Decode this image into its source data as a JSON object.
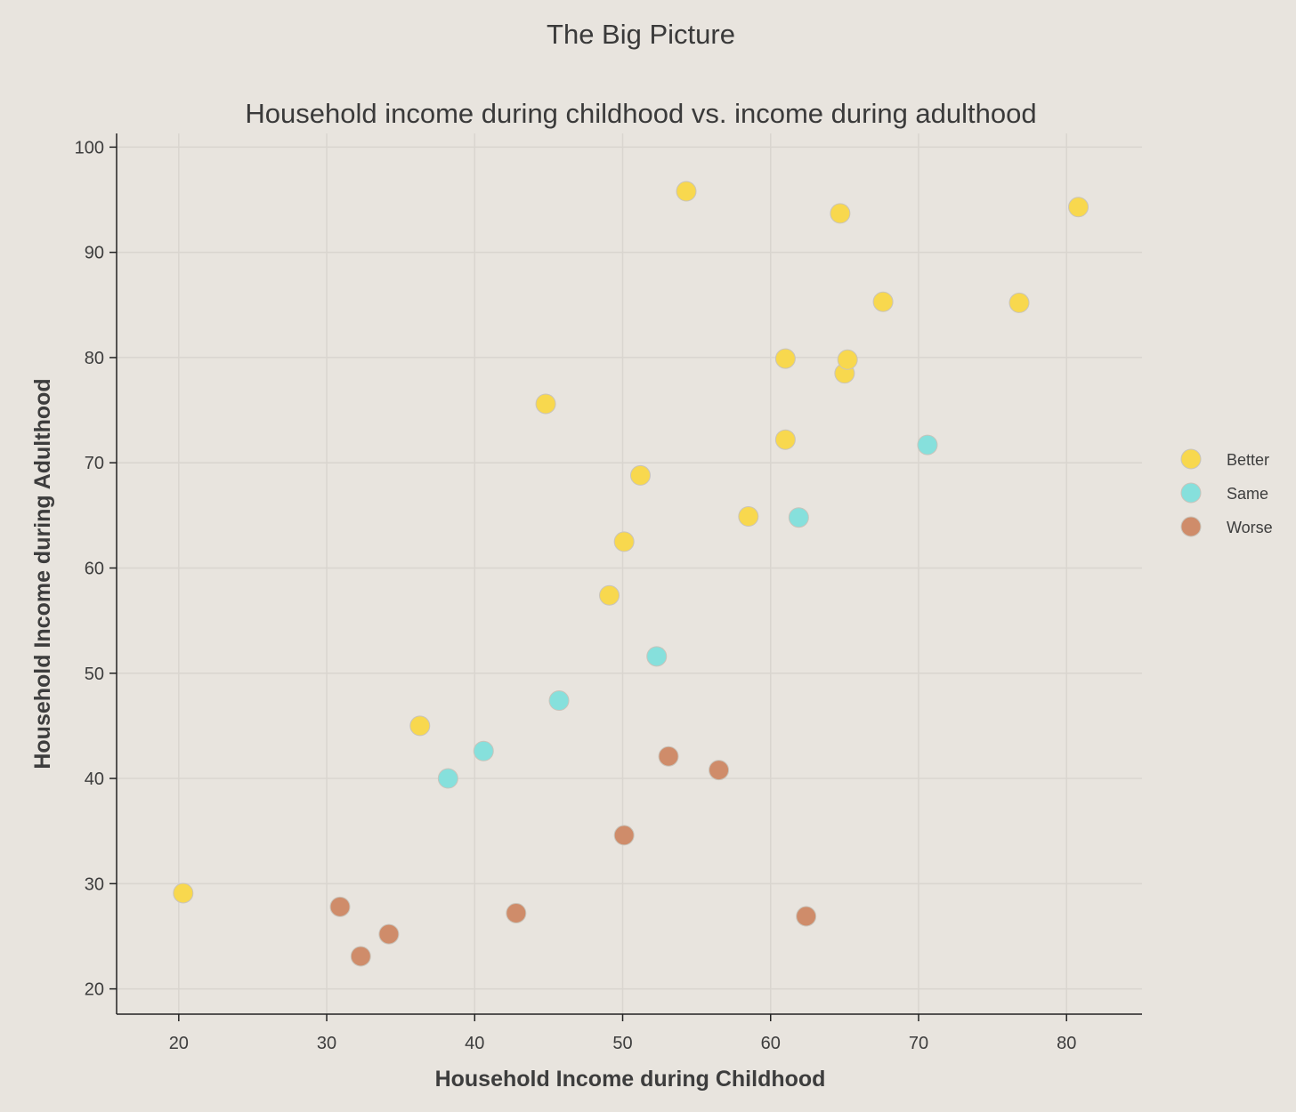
{
  "chart_data": {
    "type": "scatter",
    "title": "The Big Picture",
    "subtitle": "Household income during childhood vs. income during adulthood",
    "xlabel": "Household Income during Childhood",
    "ylabel": "Household Income during Adulthood",
    "xlim": [
      15.8,
      85.1
    ],
    "ylim": [
      17.6,
      101.3
    ],
    "xticks": [
      20,
      30,
      40,
      50,
      60,
      70,
      80
    ],
    "yticks": [
      20,
      30,
      40,
      50,
      60,
      70,
      80,
      90,
      100
    ],
    "grid": true,
    "legend_position": "right",
    "series": [
      {
        "name": "Better",
        "color": "#f8d84e",
        "points": [
          [
            20.3,
            29.1
          ],
          [
            36.3,
            45.0
          ],
          [
            44.8,
            75.6
          ],
          [
            49.1,
            57.4
          ],
          [
            50.1,
            62.5
          ],
          [
            51.2,
            68.8
          ],
          [
            54.3,
            95.8
          ],
          [
            58.5,
            64.9
          ],
          [
            61.0,
            79.9
          ],
          [
            61.0,
            72.2
          ],
          [
            64.7,
            93.7
          ],
          [
            65.0,
            78.5
          ],
          [
            65.2,
            79.8
          ],
          [
            67.6,
            85.3
          ],
          [
            76.8,
            85.2
          ],
          [
            80.8,
            94.3
          ]
        ]
      },
      {
        "name": "Same",
        "color": "#86e0dc",
        "points": [
          [
            38.2,
            40.0
          ],
          [
            40.6,
            42.6
          ],
          [
            45.7,
            47.4
          ],
          [
            52.3,
            51.6
          ],
          [
            61.9,
            64.8
          ],
          [
            70.6,
            71.7
          ]
        ]
      },
      {
        "name": "Worse",
        "color": "#cf8c6a",
        "points": [
          [
            30.9,
            27.8
          ],
          [
            32.3,
            23.1
          ],
          [
            34.2,
            25.2
          ],
          [
            42.8,
            27.2
          ],
          [
            50.1,
            34.6
          ],
          [
            53.1,
            42.1
          ],
          [
            56.5,
            40.8
          ],
          [
            62.4,
            26.9
          ]
        ]
      }
    ]
  }
}
